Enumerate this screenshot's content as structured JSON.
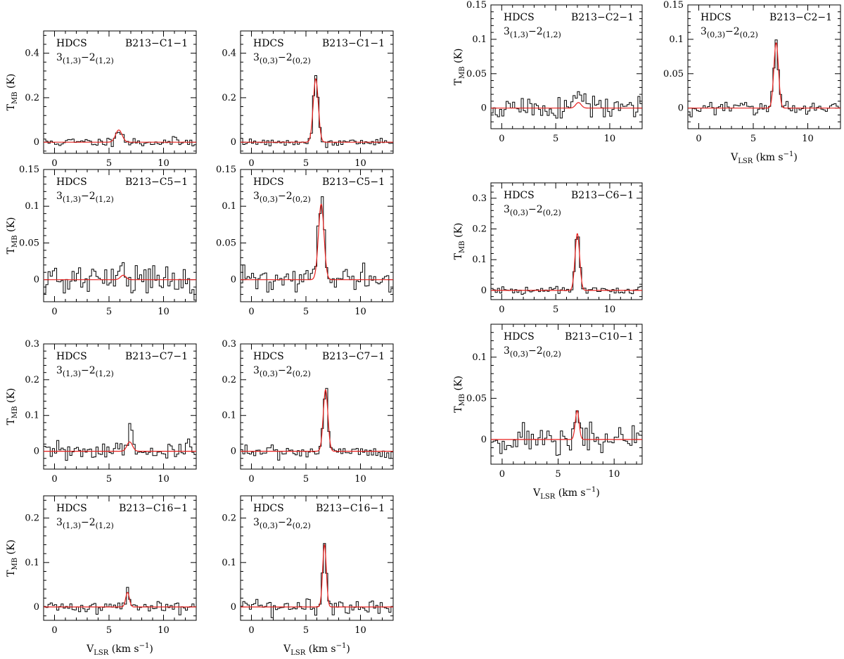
{
  "figure": {
    "colors": {
      "observed": "#000000",
      "fit": "#e8201e"
    },
    "xlabel": {
      "main": "V",
      "sub": "LSR",
      "unit": " (km s",
      "exp": "−1",
      "close": ")"
    },
    "ylabel": {
      "main": "T",
      "sub": "MB",
      "unit": " (K)"
    }
  },
  "chart_data": [
    {
      "type": "line",
      "molecule": "HDCS",
      "source": "B213−C1−1",
      "transition": {
        "j_up": "3",
        "ka_up": "(1,3)",
        "dash": "−",
        "j_lo": "2",
        "ka_lo": "(1,2)"
      },
      "xlim": [
        -1,
        13
      ],
      "ylim": [
        -0.05,
        0.5
      ],
      "xticks": [
        0,
        5,
        10
      ],
      "xtick_labels": [
        "0",
        "5",
        "10"
      ],
      "yticks": [
        0,
        0.2,
        0.4
      ],
      "ytick_labels": [
        "0",
        "0.2",
        "0.4"
      ],
      "show_xlabel": false,
      "show_ylabel": true,
      "series": [
        {
          "kind": "fit",
          "line_center": 5.9,
          "peak": 0.055,
          "fwhm": 0.7
        },
        {
          "kind": "observed",
          "channel_width": 0.2,
          "line_center": 5.9,
          "peak": 0.063,
          "fwhm": 0.7,
          "noise": 0.011,
          "seed": 11
        }
      ]
    },
    {
      "type": "line",
      "molecule": "HDCS",
      "source": "B213−C1−1",
      "transition": {
        "j_up": "3",
        "ka_up": "(0,3)",
        "dash": "−",
        "j_lo": "2",
        "ka_lo": "(0,2)"
      },
      "xlim": [
        -1,
        13
      ],
      "ylim": [
        -0.05,
        0.5
      ],
      "xticks": [
        0,
        5,
        10
      ],
      "xtick_labels": [
        "0",
        "5",
        "10"
      ],
      "yticks": [
        0,
        0.2,
        0.4
      ],
      "ytick_labels": [
        "0",
        "0.2",
        "0.4"
      ],
      "show_xlabel": false,
      "show_ylabel": false,
      "series": [
        {
          "kind": "fit",
          "line_center": 5.9,
          "peak": 0.285,
          "fwhm": 0.55
        },
        {
          "kind": "observed",
          "channel_width": 0.2,
          "line_center": 5.9,
          "peak": 0.295,
          "fwhm": 0.55,
          "noise": 0.009,
          "seed": 12
        }
      ]
    },
    {
      "type": "line",
      "molecule": "HDCS",
      "source": "B213−C5−1",
      "transition": {
        "j_up": "3",
        "ka_up": "(1,3)",
        "dash": "−",
        "j_lo": "2",
        "ka_lo": "(1,2)"
      },
      "xlim": [
        -1,
        13
      ],
      "ylim": [
        -0.03,
        0.15
      ],
      "xticks": [
        0,
        5,
        10
      ],
      "xtick_labels": [
        "0",
        "5",
        "10"
      ],
      "yticks": [
        0,
        0.05,
        0.1,
        0.15
      ],
      "ytick_labels": [
        "0",
        "0.05",
        "0.1",
        "0.15"
      ],
      "show_xlabel": false,
      "show_ylabel": true,
      "series": [
        {
          "kind": "fit",
          "line_center": 6.3,
          "peak": 0.006,
          "fwhm": 0.6
        },
        {
          "kind": "observed",
          "channel_width": 0.2,
          "line_center": 6.1,
          "peak": 0.02,
          "fwhm": 0.5,
          "noise": 0.011,
          "seed": 21
        }
      ]
    },
    {
      "type": "line",
      "molecule": "HDCS",
      "source": "B213−C5−1",
      "transition": {
        "j_up": "3",
        "ka_up": "(0,3)",
        "dash": "−",
        "j_lo": "2",
        "ka_lo": "(0,2)"
      },
      "xlim": [
        -1,
        13
      ],
      "ylim": [
        -0.03,
        0.15
      ],
      "xticks": [
        0,
        5,
        10
      ],
      "xtick_labels": [
        "0",
        "5",
        "10"
      ],
      "yticks": [
        0,
        0.05,
        0.1,
        0.15
      ],
      "ytick_labels": [
        "0",
        "0.05",
        "0.1",
        "0.15"
      ],
      "show_xlabel": false,
      "show_ylabel": false,
      "series": [
        {
          "kind": "fit",
          "line_center": 6.4,
          "peak": 0.103,
          "fwhm": 0.6
        },
        {
          "kind": "observed",
          "channel_width": 0.2,
          "line_center": 6.4,
          "peak": 0.108,
          "fwhm": 0.6,
          "noise": 0.009,
          "seed": 22
        }
      ]
    },
    {
      "type": "line",
      "molecule": "HDCS",
      "source": "B213−C7−1",
      "transition": {
        "j_up": "3",
        "ka_up": "(1,3)",
        "dash": "−",
        "j_lo": "2",
        "ka_lo": "(1,2)"
      },
      "xlim": [
        -1,
        13
      ],
      "ylim": [
        -0.05,
        0.3
      ],
      "xticks": [
        0,
        5,
        10
      ],
      "xtick_labels": [
        "0",
        "5",
        "10"
      ],
      "yticks": [
        0,
        0.1,
        0.2,
        0.3
      ],
      "ytick_labels": [
        "0",
        "0.1",
        "0.2",
        "0.3"
      ],
      "show_xlabel": false,
      "show_ylabel": true,
      "series": [
        {
          "kind": "fit",
          "line_center": 6.9,
          "peak": 0.026,
          "fwhm": 0.6
        },
        {
          "kind": "observed",
          "channel_width": 0.2,
          "line_center": 6.9,
          "peak": 0.062,
          "fwhm": 0.5,
          "noise": 0.014,
          "seed": 31
        }
      ]
    },
    {
      "type": "line",
      "molecule": "HDCS",
      "source": "B213−C7−1",
      "transition": {
        "j_up": "3",
        "ka_up": "(0,3)",
        "dash": "−",
        "j_lo": "2",
        "ka_lo": "(0,2)"
      },
      "xlim": [
        -1,
        13
      ],
      "ylim": [
        -0.05,
        0.3
      ],
      "xticks": [
        0,
        5,
        10
      ],
      "xtick_labels": [
        "0",
        "5",
        "10"
      ],
      "yticks": [
        0,
        0.1,
        0.2,
        0.3
      ],
      "ytick_labels": [
        "0",
        "0.1",
        "0.2",
        "0.3"
      ],
      "show_xlabel": false,
      "show_ylabel": false,
      "series": [
        {
          "kind": "fit",
          "line_center": 6.8,
          "peak": 0.172,
          "fwhm": 0.5
        },
        {
          "kind": "observed",
          "channel_width": 0.2,
          "line_center": 6.8,
          "peak": 0.18,
          "fwhm": 0.5,
          "noise": 0.009,
          "seed": 32
        }
      ]
    },
    {
      "type": "line",
      "molecule": "HDCS",
      "source": "B213−C16−1",
      "transition": {
        "j_up": "3",
        "ka_up": "(1,3)",
        "dash": "−",
        "j_lo": "2",
        "ka_lo": "(1,2)"
      },
      "xlim": [
        -1,
        13
      ],
      "ylim": [
        -0.03,
        0.25
      ],
      "xticks": [
        0,
        5,
        10
      ],
      "xtick_labels": [
        "0",
        "5",
        "10"
      ],
      "yticks": [
        0,
        0.1,
        0.2
      ],
      "ytick_labels": [
        "0",
        "0.1",
        "0.2"
      ],
      "show_xlabel": true,
      "show_ylabel": true,
      "series": [
        {
          "kind": "fit",
          "line_center": 6.7,
          "peak": 0.033,
          "fwhm": 0.4
        },
        {
          "kind": "observed",
          "channel_width": 0.2,
          "line_center": 6.7,
          "peak": 0.036,
          "fwhm": 0.4,
          "noise": 0.007,
          "seed": 41
        }
      ]
    },
    {
      "type": "line",
      "molecule": "HDCS",
      "source": "B213−C16−1",
      "transition": {
        "j_up": "3",
        "ka_up": "(0,3)",
        "dash": "−",
        "j_lo": "2",
        "ka_lo": "(0,2)"
      },
      "xlim": [
        -1,
        13
      ],
      "ylim": [
        -0.03,
        0.25
      ],
      "xticks": [
        0,
        5,
        10
      ],
      "xtick_labels": [
        "0",
        "5",
        "10"
      ],
      "yticks": [
        0,
        0.1,
        0.2
      ],
      "ytick_labels": [
        "0",
        "0.1",
        "0.2"
      ],
      "show_xlabel": true,
      "show_ylabel": false,
      "series": [
        {
          "kind": "fit",
          "line_center": 6.7,
          "peak": 0.14,
          "fwhm": 0.4
        },
        {
          "kind": "observed",
          "channel_width": 0.2,
          "line_center": 6.7,
          "peak": 0.148,
          "fwhm": 0.4,
          "noise": 0.009,
          "seed": 42
        }
      ]
    },
    {
      "type": "line",
      "molecule": "HDCS",
      "source": "B213−C2−1",
      "transition": {
        "j_up": "3",
        "ka_up": "(1,3)",
        "dash": "−",
        "j_lo": "2",
        "ka_lo": "(1,2)"
      },
      "xlim": [
        -1,
        13
      ],
      "ylim": [
        -0.03,
        0.15
      ],
      "xticks": [
        0,
        5,
        10
      ],
      "xtick_labels": [
        "0",
        "5",
        "10"
      ],
      "yticks": [
        0,
        0.05,
        0.1,
        0.15
      ],
      "ytick_labels": [
        "0",
        "0.05",
        "0.1",
        "0.15"
      ],
      "show_xlabel": false,
      "show_ylabel": true,
      "series": [
        {
          "kind": "fit",
          "line_center": 7.1,
          "peak": 0.008,
          "fwhm": 0.6
        },
        {
          "kind": "observed",
          "channel_width": 0.2,
          "line_center": 7.1,
          "peak": 0.03,
          "fwhm": 0.6,
          "noise": 0.01,
          "seed": 51
        }
      ]
    },
    {
      "type": "line",
      "molecule": "HDCS",
      "source": "B213−C2−1",
      "transition": {
        "j_up": "3",
        "ka_up": "(0,3)",
        "dash": "−",
        "j_lo": "2",
        "ka_lo": "(0,2)"
      },
      "xlim": [
        -1,
        13
      ],
      "ylim": [
        -0.03,
        0.15
      ],
      "xticks": [
        0,
        5,
        10
      ],
      "xtick_labels": [
        "0",
        "5",
        "10"
      ],
      "yticks": [
        0,
        0.05,
        0.1,
        0.15
      ],
      "ytick_labels": [
        "0",
        "0.05",
        "0.1",
        "0.15"
      ],
      "show_xlabel": true,
      "show_ylabel": false,
      "series": [
        {
          "kind": "fit",
          "line_center": 7.1,
          "peak": 0.095,
          "fwhm": 0.5
        },
        {
          "kind": "observed",
          "channel_width": 0.2,
          "line_center": 7.1,
          "peak": 0.098,
          "fwhm": 0.5,
          "noise": 0.005,
          "seed": 52
        }
      ]
    },
    {
      "type": "line",
      "molecule": "HDCS",
      "source": "B213−C6−1",
      "transition": {
        "j_up": "3",
        "ka_up": "(0,3)",
        "dash": "−",
        "j_lo": "2",
        "ka_lo": "(0,2)"
      },
      "xlim": [
        -1,
        13
      ],
      "ylim": [
        -0.03,
        0.35
      ],
      "xticks": [
        0,
        5,
        10
      ],
      "xtick_labels": [
        "0",
        "5",
        "10"
      ],
      "yticks": [
        0,
        0.1,
        0.2,
        0.3
      ],
      "ytick_labels": [
        "0",
        "0.1",
        "0.2",
        "0.3"
      ],
      "show_xlabel": false,
      "show_ylabel": true,
      "series": [
        {
          "kind": "fit",
          "line_center": 7.0,
          "peak": 0.185,
          "fwhm": 0.5
        },
        {
          "kind": "observed",
          "channel_width": 0.2,
          "line_center": 7.0,
          "peak": 0.19,
          "fwhm": 0.5,
          "noise": 0.007,
          "seed": 61
        }
      ]
    },
    {
      "type": "line",
      "molecule": "HDCS",
      "source": "B213−C10−1",
      "transition": {
        "j_up": "3",
        "ka_up": "(0,3)",
        "dash": "−",
        "j_lo": "2",
        "ka_lo": "(0,2)"
      },
      "xlim": [
        -1,
        12.5
      ],
      "ylim": [
        -0.03,
        0.14
      ],
      "xticks": [
        0,
        5,
        10
      ],
      "xtick_labels": [
        "0",
        "5",
        "10"
      ],
      "yticks": [
        0,
        0.05,
        0.1
      ],
      "ytick_labels": [
        "0",
        "0.05",
        "0.1"
      ],
      "show_xlabel": true,
      "show_ylabel": true,
      "series": [
        {
          "kind": "fit",
          "line_center": 6.7,
          "peak": 0.035,
          "fwhm": 0.4
        },
        {
          "kind": "observed",
          "channel_width": 0.2,
          "line_center": 6.7,
          "peak": 0.038,
          "fwhm": 0.4,
          "noise": 0.009,
          "seed": 71
        }
      ]
    }
  ]
}
